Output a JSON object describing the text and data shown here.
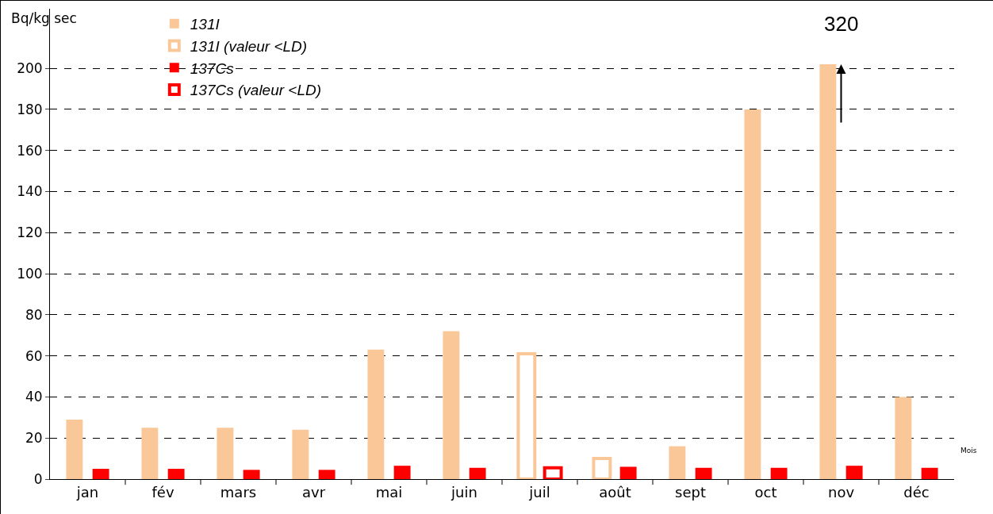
{
  "chart_data": {
    "type": "bar",
    "ylabel": "Bq/kg sec",
    "xlabel": "Mois",
    "categories": [
      "jan",
      "fév",
      "mars",
      "avr",
      "mai",
      "juin",
      "juil",
      "août",
      "sept",
      "oct",
      "nov",
      "déc"
    ],
    "series": [
      {
        "name": "131I",
        "color": "#fac898",
        "values": [
          29,
          25,
          25,
          24,
          63,
          72,
          null,
          null,
          16,
          180,
          202,
          40
        ]
      },
      {
        "name": "131I (valeur <LD)",
        "color": "#fac898",
        "line_style": "solid",
        "values": [
          null,
          null,
          null,
          null,
          null,
          null,
          61,
          10,
          null,
          null,
          null,
          null
        ]
      },
      {
        "name": "137Cs",
        "color": "#ff0000",
        "values": [
          5,
          5,
          4.5,
          4.5,
          6.5,
          5.5,
          null,
          6,
          5.5,
          5.5,
          6.5,
          5.5
        ]
      },
      {
        "name": "137Cs (valeur <LD)",
        "color": "#ff0000",
        "line_style": "solid",
        "values": [
          null,
          null,
          null,
          null,
          null,
          null,
          5.5,
          null,
          null,
          null,
          null,
          null
        ]
      }
    ],
    "ylim": [
      0,
      229
    ],
    "yticks": [
      0,
      20,
      40,
      60,
      80,
      100,
      120,
      140,
      160,
      180,
      200
    ],
    "grid": "y",
    "legend": "top left",
    "annotations": [
      "320"
    ]
  }
}
